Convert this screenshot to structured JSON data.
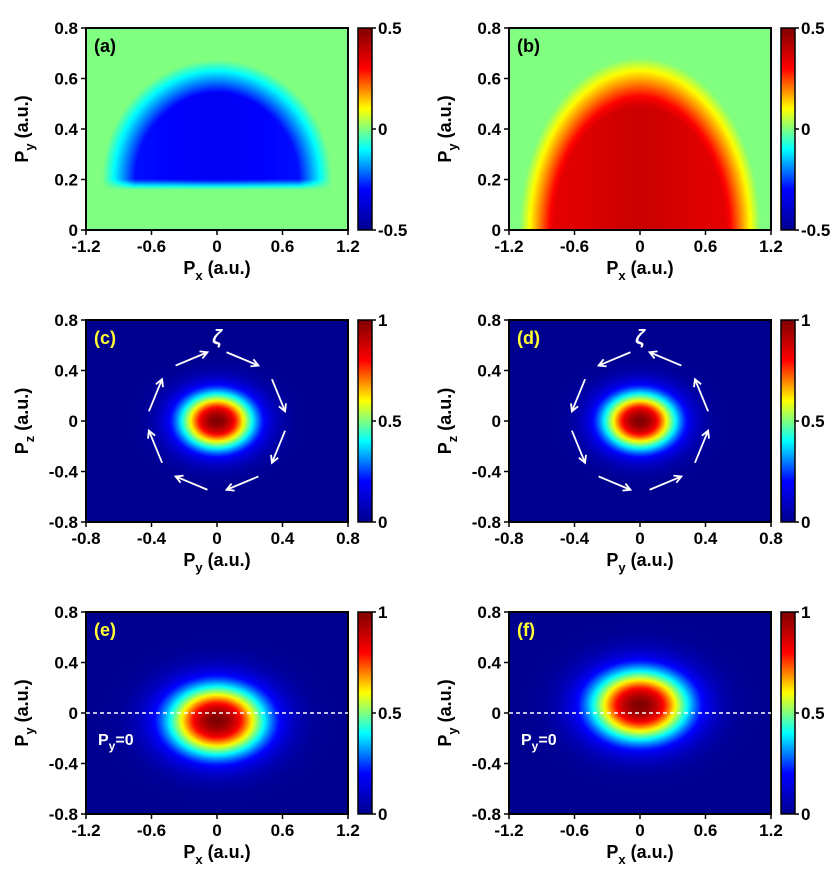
{
  "chart_data": [
    {
      "type": "heatmap",
      "panel_label": "(a)",
      "xlabel": "P",
      "xlabel_sub": "x",
      "xlabel_unit": "(a.u.)",
      "ylabel": "P",
      "ylabel_sub": "y",
      "ylabel_unit": "(a.u.)",
      "xlim": [
        -1.2,
        1.2
      ],
      "ylim": [
        0,
        0.8
      ],
      "xticks": [
        "-1.2",
        "-0.6",
        "0",
        "0.6",
        "1.2"
      ],
      "yticks": [
        "0",
        "0.2",
        "0.4",
        "0.6",
        "0.8"
      ],
      "clim": [
        -0.5,
        0.5
      ],
      "colorbar_ticks": [
        "-0.5",
        "0",
        "0.5"
      ],
      "shape": "half-disk",
      "center": [
        0,
        0.2
      ],
      "radii": [
        1.0,
        0.45
      ],
      "peak": -0.32
    },
    {
      "type": "heatmap",
      "panel_label": "(b)",
      "xlabel": "P",
      "xlabel_sub": "x",
      "xlabel_unit": "(a.u.)",
      "ylabel": "P",
      "ylabel_sub": "y",
      "ylabel_unit": "(a.u.)",
      "xlim": [
        -1.2,
        1.2
      ],
      "ylim": [
        0,
        0.8
      ],
      "xticks": [
        "-1.2",
        "-0.6",
        "0",
        "0.6",
        "1.2"
      ],
      "yticks": [
        "0",
        "0.2",
        "0.4",
        "0.6",
        "0.8"
      ],
      "clim": [
        -0.5,
        0.5
      ],
      "colorbar_ticks": [
        "-0.5",
        "0",
        "0.5"
      ],
      "shape": "half-disk",
      "center": [
        0,
        0.0
      ],
      "radii": [
        1.05,
        0.65
      ],
      "peak": 0.38
    },
    {
      "type": "heatmap",
      "panel_label": "(c)",
      "xlabel": "P",
      "xlabel_sub": "y",
      "xlabel_unit": "(a.u.)",
      "ylabel": "P",
      "ylabel_sub": "z",
      "ylabel_unit": "(a.u.)",
      "xlim": [
        -0.8,
        0.8
      ],
      "ylim": [
        -0.8,
        0.8
      ],
      "xticks": [
        "-0.8",
        "-0.4",
        "0",
        "0.4",
        "0.8"
      ],
      "yticks": [
        "-0.8",
        "-0.4",
        "0",
        "0.4",
        "0.8"
      ],
      "clim": [
        0,
        1
      ],
      "colorbar_ticks": [
        "0",
        "0.5",
        "1"
      ],
      "shape": "gaussian",
      "center": [
        0,
        0
      ],
      "sigma": [
        0.16,
        0.16
      ],
      "annotation": "ζ",
      "rotation": "clockwise"
    },
    {
      "type": "heatmap",
      "panel_label": "(d)",
      "xlabel": "P",
      "xlabel_sub": "y",
      "xlabel_unit": "(a.u.)",
      "ylabel": "P",
      "ylabel_sub": "z",
      "ylabel_unit": "(a.u.)",
      "xlim": [
        -0.8,
        0.8
      ],
      "ylim": [
        -0.8,
        0.8
      ],
      "xticks": [
        "-0.8",
        "-0.4",
        "0",
        "0.4",
        "0.8"
      ],
      "yticks": [
        "-0.8",
        "-0.4",
        "0",
        "0.4",
        "0.8"
      ],
      "clim": [
        0,
        1
      ],
      "colorbar_ticks": [
        "0",
        "0.5",
        "1"
      ],
      "shape": "gaussian",
      "center": [
        0,
        0
      ],
      "sigma": [
        0.16,
        0.16
      ],
      "annotation": "ζ",
      "rotation": "counterclockwise"
    },
    {
      "type": "heatmap",
      "panel_label": "(e)",
      "xlabel": "P",
      "xlabel_sub": "x",
      "xlabel_unit": "(a.u.)",
      "ylabel": "P",
      "ylabel_sub": "y",
      "ylabel_unit": "(a.u.)",
      "xlim": [
        -1.2,
        1.2
      ],
      "ylim": [
        -0.8,
        0.8
      ],
      "xticks": [
        "-1.2",
        "-0.6",
        "0",
        "0.6",
        "1.2"
      ],
      "yticks": [
        "-0.8",
        "-0.4",
        "0",
        "0.4",
        "0.8"
      ],
      "clim": [
        0,
        1
      ],
      "colorbar_ticks": [
        "0",
        "0.5",
        "1"
      ],
      "shape": "gaussian",
      "center": [
        0,
        -0.06
      ],
      "sigma": [
        0.32,
        0.2
      ],
      "line_label": "P",
      "line_label_sub": "y",
      "line_label_rest": "=0",
      "line_at": 0
    },
    {
      "type": "heatmap",
      "panel_label": "(f)",
      "xlabel": "P",
      "xlabel_sub": "x",
      "xlabel_unit": "(a.u.)",
      "ylabel": "P",
      "ylabel_sub": "y",
      "ylabel_unit": "(a.u.)",
      "xlim": [
        -1.2,
        1.2
      ],
      "ylim": [
        -0.8,
        0.8
      ],
      "xticks": [
        "-1.2",
        "-0.6",
        "0",
        "0.6",
        "1.2"
      ],
      "yticks": [
        "-0.8",
        "-0.4",
        "0",
        "0.4",
        "0.8"
      ],
      "clim": [
        0,
        1
      ],
      "colorbar_ticks": [
        "0",
        "0.5",
        "1"
      ],
      "shape": "gaussian",
      "center": [
        0,
        0.06
      ],
      "sigma": [
        0.32,
        0.2
      ],
      "line_label": "P",
      "line_label_sub": "y",
      "line_label_rest": "=0",
      "line_at": 0
    }
  ],
  "colors": {
    "colormap": [
      "#00008f",
      "#0000ff",
      "#00ffff",
      "#ffff00",
      "#ff0000",
      "#800000"
    ],
    "panel_label_light": "#000000",
    "panel_label_dark": "#ffff33",
    "annotation": "#ffffff"
  }
}
